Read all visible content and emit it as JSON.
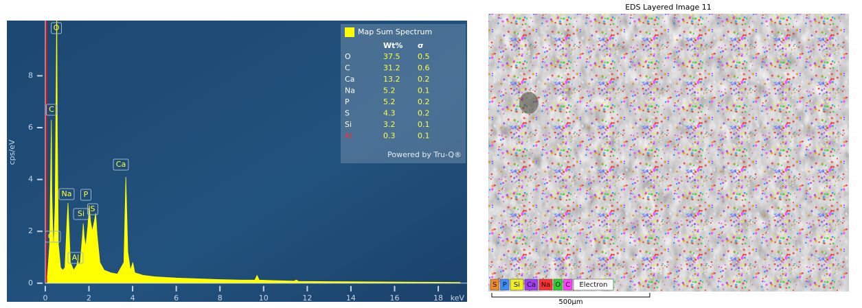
{
  "chart_data": {
    "type": "area",
    "y_label": "cps/eV",
    "x_label": "keV",
    "color": "#ffff00",
    "x": [
      0,
      0.1,
      0.2,
      0.25,
      0.277,
      0.3,
      0.34,
      0.38,
      0.45,
      0.5,
      0.525,
      0.55,
      0.6,
      0.7,
      0.8,
      0.9,
      1.0,
      1.04,
      1.08,
      1.15,
      1.3,
      1.45,
      1.49,
      1.53,
      1.6,
      1.7,
      1.74,
      1.78,
      1.85,
      1.95,
      2.01,
      2.07,
      2.15,
      2.25,
      2.31,
      2.37,
      2.5,
      2.7,
      3.0,
      3.3,
      3.6,
      3.69,
      3.78,
      3.9,
      4.01,
      4.1,
      4.5,
      5,
      6,
      7,
      8,
      9,
      9.6,
      9.7,
      9.8,
      10.5,
      11.4,
      11.5,
      11.6,
      13,
      15,
      17,
      19
    ],
    "values": [
      0,
      0.3,
      1.5,
      4.5,
      6.3,
      3.5,
      2.2,
      1.2,
      3,
      8,
      11,
      6,
      1.5,
      0.6,
      0.5,
      0.6,
      2.5,
      3.1,
      2.3,
      0.8,
      0.5,
      0.7,
      0.9,
      0.7,
      0.8,
      1.8,
      2.3,
      1.8,
      1.4,
      2.2,
      3.0,
      2.4,
      2.0,
      2.4,
      2.7,
      1.9,
      0.8,
      0.5,
      0.4,
      0.35,
      0.8,
      4.1,
      1.2,
      0.5,
      0.8,
      0.4,
      0.3,
      0.25,
      0.2,
      0.17,
      0.14,
      0.12,
      0.12,
      0.3,
      0.12,
      0.1,
      0.08,
      0.12,
      0.07,
      0.06,
      0.05,
      0.04,
      0.03
    ],
    "xlim": [
      -1.76,
      19.32
    ],
    "xticks": [
      0,
      2,
      4,
      6,
      8,
      10,
      12,
      14,
      16,
      18
    ],
    "ylim": [
      -0.72,
      10.13
    ],
    "yticks": [
      0,
      2,
      4,
      6,
      8
    ],
    "peak_labels": [
      "O",
      "C",
      "Ca",
      "Na",
      "P",
      "Si",
      "S",
      "Al",
      "Ca"
    ],
    "results": {
      "title": "Map Sum Spectrum",
      "columns": [
        "Wt%",
        "σ"
      ],
      "rows": [
        {
          "element": "O",
          "wt": 37.5,
          "sigma": 0.5,
          "color": "#ffffff"
        },
        {
          "element": "C",
          "wt": 31.2,
          "sigma": 0.6,
          "color": "#ffffff"
        },
        {
          "element": "Ca",
          "wt": 13.2,
          "sigma": 0.2,
          "color": "#ffffff"
        },
        {
          "element": "Na",
          "wt": 5.2,
          "sigma": 0.1,
          "color": "#ffffff"
        },
        {
          "element": "P",
          "wt": 5.2,
          "sigma": 0.2,
          "color": "#ffffff"
        },
        {
          "element": "S",
          "wt": 4.3,
          "sigma": 0.2,
          "color": "#ffffff"
        },
        {
          "element": "Si",
          "wt": 3.2,
          "sigma": 0.1,
          "color": "#ffffff"
        },
        {
          "element": "Al",
          "wt": 0.3,
          "sigma": 0.1,
          "color": "#ff3030"
        }
      ],
      "footer": "Powered by Tru-Q®"
    }
  },
  "image": {
    "title": "EDS Layered Image 11",
    "scale": "500µm",
    "legend": [
      {
        "label": "S",
        "color": "#f08a24"
      },
      {
        "label": "P",
        "color": "#3a8cff"
      },
      {
        "label": "Si",
        "color": "#f0f020"
      },
      {
        "label": "Ca",
        "color": "#a040f0"
      },
      {
        "label": "Na",
        "color": "#ff3030"
      },
      {
        "label": "O",
        "color": "#30d030"
      },
      {
        "label": "C",
        "color": "#ff40ff"
      },
      {
        "label": "Electron",
        "color": "#ffffff"
      }
    ]
  }
}
